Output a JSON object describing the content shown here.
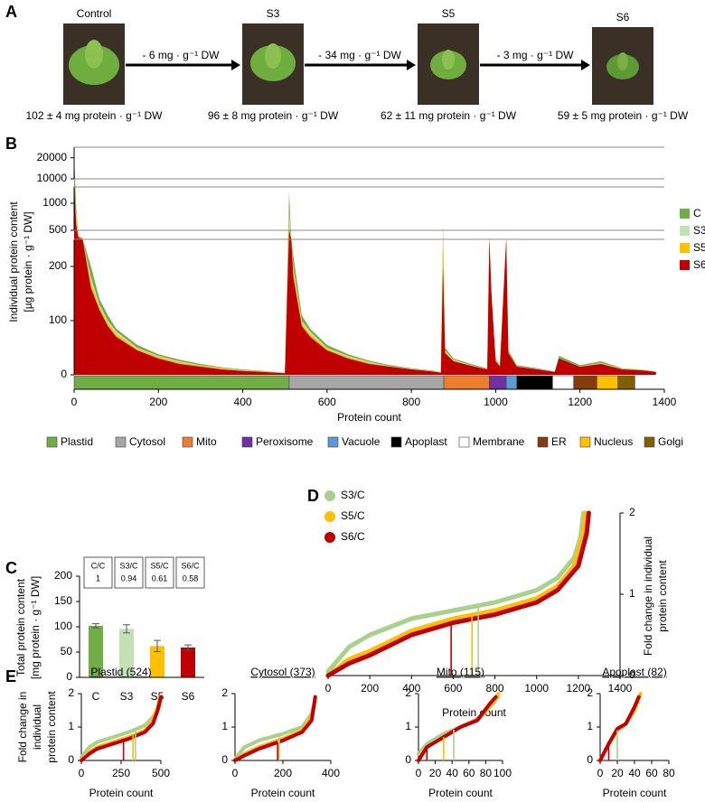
{
  "panel_a": {
    "panel_label": "A",
    "conditions": [
      {
        "name": "Control",
        "protein": "102 ± 4 mg protein · g⁻¹ DW"
      },
      {
        "name": "S3",
        "protein": "96 ± 8 mg protein · g⁻¹ DW"
      },
      {
        "name": "S5",
        "protein": "62 ± 11 mg protein · g⁻¹ DW"
      },
      {
        "name": "S6",
        "protein": "59 ± 5 mg protein · g⁻¹ DW"
      }
    ],
    "transitions": [
      "- 6 mg · g⁻¹ DW",
      "- 34 mg · g⁻¹ DW",
      "- 3 mg · g⁻¹ DW"
    ]
  },
  "chart_data": [
    {
      "panel_label": "B",
      "type": "area",
      "y_label": [
        "Individual protein content",
        "[µg protein · g⁻¹ DW]"
      ],
      "x_label": "Protein count",
      "x": [
        0,
        5,
        10,
        20,
        40,
        60,
        80,
        100,
        150,
        200,
        250,
        300,
        350,
        400,
        450,
        500,
        510,
        515,
        520,
        540,
        560,
        600,
        650,
        700,
        750,
        800,
        850,
        870,
        875,
        880,
        900,
        950,
        980,
        985,
        990,
        1000,
        1010,
        1025,
        1030,
        1050,
        1100,
        1140,
        1150,
        1200,
        1250,
        1300,
        1350,
        1380
      ],
      "xlim": [
        0,
        1400
      ],
      "xticks": [
        0,
        200,
        400,
        600,
        800,
        1000,
        1200,
        1400
      ],
      "y_segments": [
        {
          "ylim": [
            0,
            250
          ],
          "yticks": [
            0,
            100,
            200
          ]
        },
        {
          "ylim": [
            500,
            1300
          ],
          "yticks": [
            500,
            1000
          ]
        },
        {
          "ylim": [
            10000,
            25000
          ],
          "yticks": [
            10000,
            20000
          ]
        }
      ],
      "legend": "right",
      "series": [
        {
          "name": "C",
          "color": "#70ad47",
          "values": [
            22000,
            900,
            350,
            280,
            200,
            140,
            110,
            85,
            55,
            38,
            28,
            20,
            14,
            10,
            7,
            4,
            1200,
            300,
            220,
            110,
            85,
            55,
            38,
            26,
            18,
            12,
            8,
            5,
            560,
            50,
            30,
            18,
            12,
            220,
            120,
            30,
            18,
            250,
            45,
            18,
            12,
            6,
            35,
            18,
            25,
            12,
            9,
            6
          ]
        },
        {
          "name": "S3",
          "color": "#c5e0b4",
          "values": [
            1100,
            800,
            320,
            260,
            180,
            130,
            100,
            80,
            50,
            35,
            25,
            18,
            13,
            9,
            6,
            4,
            900,
            280,
            200,
            100,
            80,
            50,
            35,
            24,
            16,
            11,
            7,
            5,
            300,
            45,
            28,
            16,
            11,
            250,
            130,
            28,
            16,
            200,
            40,
            16,
            11,
            5,
            30,
            16,
            22,
            11,
            8,
            5
          ]
        },
        {
          "name": "S5",
          "color": "#ffc000",
          "values": [
            1000,
            700,
            300,
            255,
            170,
            125,
            95,
            75,
            48,
            33,
            23,
            17,
            12,
            8,
            6,
            3,
            600,
            270,
            190,
            95,
            75,
            48,
            33,
            22,
            15,
            10,
            7,
            4,
            250,
            42,
            26,
            15,
            10,
            270,
            140,
            26,
            15,
            260,
            42,
            15,
            10,
            5,
            28,
            15,
            21,
            10,
            8,
            5
          ]
        },
        {
          "name": "S6",
          "color": "#c00000",
          "values": [
            1300,
            600,
            300,
            250,
            160,
            120,
            90,
            70,
            45,
            30,
            20,
            15,
            10,
            7,
            5,
            3,
            500,
            250,
            180,
            90,
            70,
            45,
            30,
            20,
            15,
            10,
            6,
            4,
            200,
            40,
            25,
            15,
            10,
            280,
            150,
            25,
            15,
            280,
            40,
            15,
            10,
            5,
            30,
            15,
            20,
            10,
            8,
            5
          ]
        }
      ],
      "compartments": [
        {
          "name": "Plastid",
          "color": "#70ad47",
          "start": 0,
          "end": 510
        },
        {
          "name": "Cytosol",
          "color": "#a6a6a6",
          "start": 510,
          "end": 877
        },
        {
          "name": "Mito",
          "color": "#ed7d31",
          "start": 877,
          "end": 985
        },
        {
          "name": "Peroxisome",
          "color": "#7030a0",
          "start": 985,
          "end": 1025
        },
        {
          "name": "Vacuole",
          "color": "#5b9bd5",
          "start": 1025,
          "end": 1050
        },
        {
          "name": "Apoplast",
          "color": "#000000",
          "start": 1050,
          "end": 1135
        },
        {
          "name": "Membrane",
          "color": "#ffffff",
          "start": 1135,
          "end": 1185
        },
        {
          "name": "ER",
          "color": "#843c0c",
          "start": 1185,
          "end": 1240
        },
        {
          "name": "Nucleus",
          "color": "#ffc000",
          "start": 1240,
          "end": 1290
        },
        {
          "name": "Golgi",
          "color": "#7f6000",
          "start": 1290,
          "end": 1330
        }
      ]
    },
    {
      "panel_label": "C",
      "type": "bar",
      "y_label": [
        "Total protein content",
        "[mg protein · g⁻¹ DW]"
      ],
      "categories": [
        "C",
        "S3",
        "S5",
        "S6"
      ],
      "values": [
        102,
        96,
        62,
        59
      ],
      "errors": [
        4,
        8,
        11,
        5
      ],
      "colors": [
        "#70ad47",
        "#c5e0b4",
        "#ffc000",
        "#c00000"
      ],
      "ylim": [
        0,
        200
      ],
      "yticks": [
        0,
        50,
        100,
        150,
        200
      ],
      "ratio_boxes": [
        {
          "label": "C/C",
          "value": 1
        },
        {
          "label": "S3/C",
          "value": 0.94
        },
        {
          "label": "S5/C",
          "value": 0.61
        },
        {
          "label": "S6/C",
          "value": 0.58
        }
      ]
    },
    {
      "panel_label": "D",
      "type": "line",
      "x_label": "Protein count",
      "y_label": [
        "Fold change in individual",
        "protein content"
      ],
      "y_axis_side": "right",
      "xlim": [
        0,
        1400
      ],
      "xticks": [
        0,
        200,
        400,
        600,
        800,
        1000,
        1200,
        1400
      ],
      "ylim": [
        0,
        2
      ],
      "yticks": [
        0,
        1,
        2
      ],
      "legend": "upper left",
      "series": [
        {
          "name": "S3/C",
          "color": "#a9d18e",
          "x": [
            0,
            100,
            200,
            400,
            600,
            800,
            1000,
            1100,
            1180,
            1210,
            1225
          ],
          "values": [
            0.05,
            0.35,
            0.5,
            0.7,
            0.8,
            0.9,
            1.05,
            1.2,
            1.45,
            1.7,
            2.0
          ],
          "marker_x": 720
        },
        {
          "name": "S5/C",
          "color": "#ffc000",
          "x": [
            0,
            100,
            200,
            400,
            600,
            800,
            1000,
            1100,
            1180,
            1220,
            1235
          ],
          "values": [
            0,
            0.2,
            0.3,
            0.55,
            0.7,
            0.8,
            0.95,
            1.1,
            1.35,
            1.7,
            2.0
          ],
          "marker_x": 690
        },
        {
          "name": "S6/C",
          "color": "#c00000",
          "x": [
            0,
            100,
            200,
            400,
            600,
            800,
            1000,
            1100,
            1200,
            1240,
            1250
          ],
          "values": [
            0,
            0.15,
            0.25,
            0.5,
            0.65,
            0.75,
            0.9,
            1.05,
            1.35,
            1.75,
            2.0
          ],
          "marker_x": 590
        }
      ]
    },
    {
      "panel_label": "E",
      "type": "line",
      "title": "Plastid (524)",
      "x_label": "Protein count",
      "y_label": [
        "Fold change in",
        "individual",
        "protein content"
      ],
      "xlim": [
        0,
        500
      ],
      "xticks": [
        0,
        250,
        500
      ],
      "ylim": [
        0,
        2
      ],
      "yticks": [
        0,
        1,
        2
      ],
      "series": [
        {
          "color": "#a9d18e",
          "x": [
            0,
            50,
            100,
            200,
            300,
            400,
            450,
            490,
            500
          ],
          "values": [
            0.1,
            0.4,
            0.55,
            0.7,
            0.85,
            1.05,
            1.3,
            1.6,
            1.9
          ],
          "marker_x": 340
        },
        {
          "color": "#ffc000",
          "x": [
            0,
            50,
            100,
            200,
            300,
            400,
            450,
            480,
            495
          ],
          "values": [
            0,
            0.25,
            0.4,
            0.55,
            0.7,
            0.9,
            1.2,
            1.6,
            1.9
          ],
          "marker_x": 325
        },
        {
          "color": "#c00000",
          "x": [
            0,
            50,
            100,
            200,
            300,
            400,
            450,
            480,
            500
          ],
          "values": [
            0,
            0.2,
            0.35,
            0.5,
            0.65,
            0.85,
            1.1,
            1.5,
            1.9
          ],
          "marker_x": 265
        }
      ]
    },
    {
      "type": "line",
      "title": "Cytosol (373)",
      "x_label": "Protein count",
      "xlim": [
        0,
        400
      ],
      "xticks": [
        0,
        200,
        400
      ],
      "ylim": [
        0,
        2
      ],
      "yticks": [
        0,
        1,
        2
      ],
      "series": [
        {
          "color": "#a9d18e",
          "x": [
            0,
            40,
            100,
            200,
            280,
            320,
            335
          ],
          "values": [
            0.05,
            0.4,
            0.6,
            0.8,
            1.0,
            1.4,
            1.8
          ],
          "marker_x": 185
        },
        {
          "color": "#ffc000",
          "x": [
            0,
            40,
            100,
            200,
            280,
            320,
            335
          ],
          "values": [
            0,
            0.2,
            0.4,
            0.65,
            0.9,
            1.3,
            1.8
          ],
          "marker_x": 180
        },
        {
          "color": "#c00000",
          "x": [
            0,
            40,
            100,
            200,
            280,
            320,
            335
          ],
          "values": [
            0,
            0.15,
            0.35,
            0.6,
            0.85,
            1.2,
            1.9
          ],
          "marker_x": 178
        }
      ]
    },
    {
      "type": "line",
      "title": "Mito (115)",
      "x_label": "Protein count",
      "xlim": [
        0,
        100
      ],
      "xticks": [
        0,
        20,
        40,
        60,
        80,
        100
      ],
      "ylim": [
        0,
        2
      ],
      "yticks": [
        0,
        1,
        2
      ],
      "series": [
        {
          "color": "#a9d18e",
          "x": [
            0,
            10,
            30,
            50,
            70,
            85,
            95
          ],
          "values": [
            0.2,
            0.5,
            0.8,
            1.0,
            1.25,
            1.6,
            1.9
          ],
          "marker_x": 42
        },
        {
          "color": "#ffc000",
          "x": [
            0,
            10,
            30,
            50,
            70,
            85,
            95
          ],
          "values": [
            0,
            0.4,
            0.7,
            1.0,
            1.2,
            1.6,
            2.0
          ],
          "marker_x": 30
        },
        {
          "color": "#c00000",
          "x": [
            0,
            10,
            30,
            50,
            70,
            85,
            92
          ],
          "values": [
            0,
            0.4,
            0.7,
            1.0,
            1.2,
            1.7,
            1.9
          ],
          "marker_x": 10
        }
      ]
    },
    {
      "type": "line",
      "title": "Apoplast (82)",
      "x_label": "Protein count",
      "xlim": [
        0,
        80
      ],
      "xticks": [
        0,
        20,
        40,
        60,
        80
      ],
      "ylim": [
        0,
        2
      ],
      "yticks": [
        0,
        1,
        2
      ],
      "series": [
        {
          "color": "#a9d18e",
          "x": [
            0,
            10,
            20,
            30,
            40,
            45
          ],
          "values": [
            0,
            0.5,
            0.9,
            1.1,
            1.5,
            1.9
          ],
          "marker_x": 20
        },
        {
          "color": "#ffc000",
          "x": [
            0,
            10,
            20,
            30,
            40,
            47
          ],
          "values": [
            0,
            0.5,
            0.9,
            1.1,
            1.5,
            2.0
          ]
        },
        {
          "color": "#c00000",
          "x": [
            0,
            10,
            20,
            30,
            40,
            45
          ],
          "values": [
            0,
            0.5,
            0.95,
            1.1,
            1.6,
            1.9
          ],
          "marker_x": 10
        }
      ]
    }
  ]
}
